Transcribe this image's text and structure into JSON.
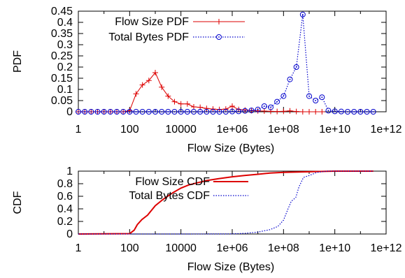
{
  "chart_data": [
    {
      "type": "line",
      "xscale": "log10",
      "xlabel": "Flow Size (Bytes)",
      "ylabel": "PDF",
      "xlim": [
        1,
        1000000000000
      ],
      "ylim": [
        0,
        0.45
      ],
      "x_ticks": [
        "1",
        "100",
        "10000",
        "1e+06",
        "1e+08",
        "1e+10",
        "1e+12"
      ],
      "y_ticks": [
        "0",
        "0.05",
        "0.1",
        "0.15",
        "0.2",
        "0.25",
        "0.3",
        "0.35",
        "0.4",
        "0.45"
      ],
      "legend_position": "top-left",
      "grid": false,
      "series": [
        {
          "name": "Flow Size PDF",
          "color": "#dd0000",
          "marker": "plus",
          "line": "solid",
          "points": [
            [
              1,
              0
            ],
            [
              1.78,
              0
            ],
            [
              3.16,
              0
            ],
            [
              5.62,
              0
            ],
            [
              10,
              0
            ],
            [
              17.8,
              0
            ],
            [
              31.6,
              0
            ],
            [
              56.2,
              0
            ],
            [
              100,
              0.005
            ],
            [
              178,
              0.08
            ],
            [
              316,
              0.12
            ],
            [
              562,
              0.14
            ],
            [
              1000,
              0.175
            ],
            [
              1780,
              0.11
            ],
            [
              3160,
              0.07
            ],
            [
              5620,
              0.045
            ],
            [
              10000,
              0.035
            ],
            [
              17800,
              0.035
            ],
            [
              31600,
              0.022
            ],
            [
              56200,
              0.02
            ],
            [
              100000,
              0.015
            ],
            [
              178000,
              0.012
            ],
            [
              316000,
              0.01
            ],
            [
              562000,
              0.012
            ],
            [
              1000000,
              0.025
            ],
            [
              1780000,
              0.01
            ],
            [
              3160000,
              0.008
            ],
            [
              5620000,
              0.005
            ],
            [
              10000000,
              0.004
            ],
            [
              17800000,
              0.003
            ],
            [
              31600000,
              0.002
            ],
            [
              56200000,
              0.001
            ],
            [
              100000000,
              0.002
            ],
            [
              178000000,
              0.004
            ],
            [
              316000000,
              0.001
            ],
            [
              562000000,
              0
            ],
            [
              1000000000,
              0
            ],
            [
              1780000000,
              0
            ],
            [
              3160000000,
              0
            ]
          ]
        },
        {
          "name": "Total Bytes PDF",
          "color": "#0000cc",
          "marker": "circle-dot",
          "line": "dotted",
          "points": [
            [
              1,
              0
            ],
            [
              1.78,
              0
            ],
            [
              3.16,
              0
            ],
            [
              5.62,
              0
            ],
            [
              10,
              0
            ],
            [
              17.8,
              0
            ],
            [
              31.6,
              0
            ],
            [
              56.2,
              0
            ],
            [
              100,
              0
            ],
            [
              178,
              0
            ],
            [
              316,
              0
            ],
            [
              562,
              0
            ],
            [
              1000,
              0
            ],
            [
              1780,
              0
            ],
            [
              3160,
              0
            ],
            [
              5620,
              0
            ],
            [
              10000,
              0
            ],
            [
              17800,
              0
            ],
            [
              31600,
              0
            ],
            [
              56200,
              0
            ],
            [
              100000,
              0
            ],
            [
              178000,
              0
            ],
            [
              316000,
              0
            ],
            [
              562000,
              0
            ],
            [
              1000000,
              0.001
            ],
            [
              1780000,
              0.002
            ],
            [
              3160000,
              0.004
            ],
            [
              5620000,
              0.006
            ],
            [
              10000000,
              0.01
            ],
            [
              17800000,
              0.025
            ],
            [
              31600000,
              0.02
            ],
            [
              56200000,
              0.045
            ],
            [
              100000000,
              0.07
            ],
            [
              178000000,
              0.145
            ],
            [
              316000000,
              0.2
            ],
            [
              562000000,
              0.435
            ],
            [
              1000000000,
              0.07
            ],
            [
              1780000000,
              0.05
            ],
            [
              3160000000,
              0.065
            ],
            [
              5620000000,
              0.005
            ],
            [
              10000000000,
              0.002
            ],
            [
              17800000000,
              0.001
            ],
            [
              31600000000,
              0
            ],
            [
              56200000000,
              0
            ],
            [
              100000000000,
              0
            ],
            [
              178000000000,
              0
            ],
            [
              316000000000,
              0
            ]
          ]
        }
      ]
    },
    {
      "type": "line",
      "xscale": "log10",
      "xlabel": "Flow Size (Bytes)",
      "ylabel": "CDF",
      "xlim": [
        1,
        1000000000000
      ],
      "ylim": [
        0,
        1
      ],
      "x_ticks": [
        "1",
        "100",
        "10000",
        "1e+06",
        "1e+08",
        "1e+10",
        "1e+12"
      ],
      "y_ticks": [
        "0",
        "0.2",
        "0.4",
        "0.6",
        "0.8",
        "1"
      ],
      "legend_position": "top-left",
      "grid": false,
      "series": [
        {
          "name": "Flow Size CDF",
          "color": "#dd0000",
          "line": "solid",
          "points": [
            [
              1,
              0
            ],
            [
              100,
              0.005
            ],
            [
              150,
              0.06
            ],
            [
              200,
              0.15
            ],
            [
              300,
              0.23
            ],
            [
              500,
              0.3
            ],
            [
              1000,
              0.45
            ],
            [
              2000,
              0.55
            ],
            [
              3000,
              0.6
            ],
            [
              5000,
              0.66
            ],
            [
              10000,
              0.73
            ],
            [
              20000,
              0.78
            ],
            [
              50000,
              0.82
            ],
            [
              100000,
              0.85
            ],
            [
              300000,
              0.88
            ],
            [
              1000000,
              0.91
            ],
            [
              3000000,
              0.93
            ],
            [
              10000000,
              0.95
            ],
            [
              30000000,
              0.97
            ],
            [
              100000000,
              0.98
            ],
            [
              1000000000,
              0.99
            ],
            [
              10000000000,
              1
            ],
            [
              100000000000,
              1
            ],
            [
              316000000000,
              1
            ]
          ]
        },
        {
          "name": "Total Bytes CDF",
          "color": "#0000cc",
          "line": "dotted",
          "points": [
            [
              1,
              0
            ],
            [
              100,
              0
            ],
            [
              10000,
              0
            ],
            [
              1000000,
              0.002
            ],
            [
              3000000,
              0.01
            ],
            [
              10000000,
              0.03
            ],
            [
              30000000,
              0.07
            ],
            [
              60000000,
              0.12
            ],
            [
              100000000,
              0.22
            ],
            [
              150000000,
              0.4
            ],
            [
              200000000,
              0.52
            ],
            [
              300000000,
              0.58
            ],
            [
              400000000,
              0.75
            ],
            [
              600000000,
              0.9
            ],
            [
              1000000000,
              0.93
            ],
            [
              2000000000,
              0.98
            ],
            [
              5000000000,
              1
            ],
            [
              100000000000,
              1
            ],
            [
              316000000000,
              1
            ]
          ]
        }
      ]
    }
  ]
}
